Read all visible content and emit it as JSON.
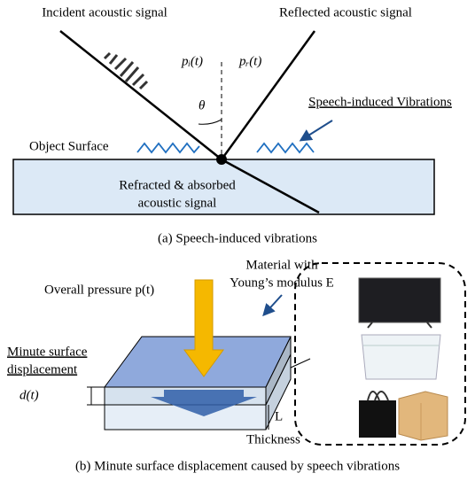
{
  "panel_a": {
    "incident": "Incident acoustic signal",
    "reflected": "Reflected acoustic signal",
    "p_incident": "pᵢ(t)",
    "p_reflected": "pᵣ(t)",
    "angle": "θ",
    "vibrations": "Speech-induced Vibrations",
    "surface": "Object Surface",
    "refracted": [
      "Refracted & absorbed",
      "acoustic signal"
    ],
    "caption": "(a)  Speech-induced vibrations"
  },
  "panel_b": {
    "pressure": "Overall pressure p(t)",
    "material": [
      "Material with",
      "Young’s modulus E"
    ],
    "displacement": [
      "Minute surface",
      "displacement"
    ],
    "d": "d(t)",
    "L": "L",
    "thickness": "Thickness",
    "caption": "(b)  Minute surface displacement caused by speech vibrations"
  }
}
